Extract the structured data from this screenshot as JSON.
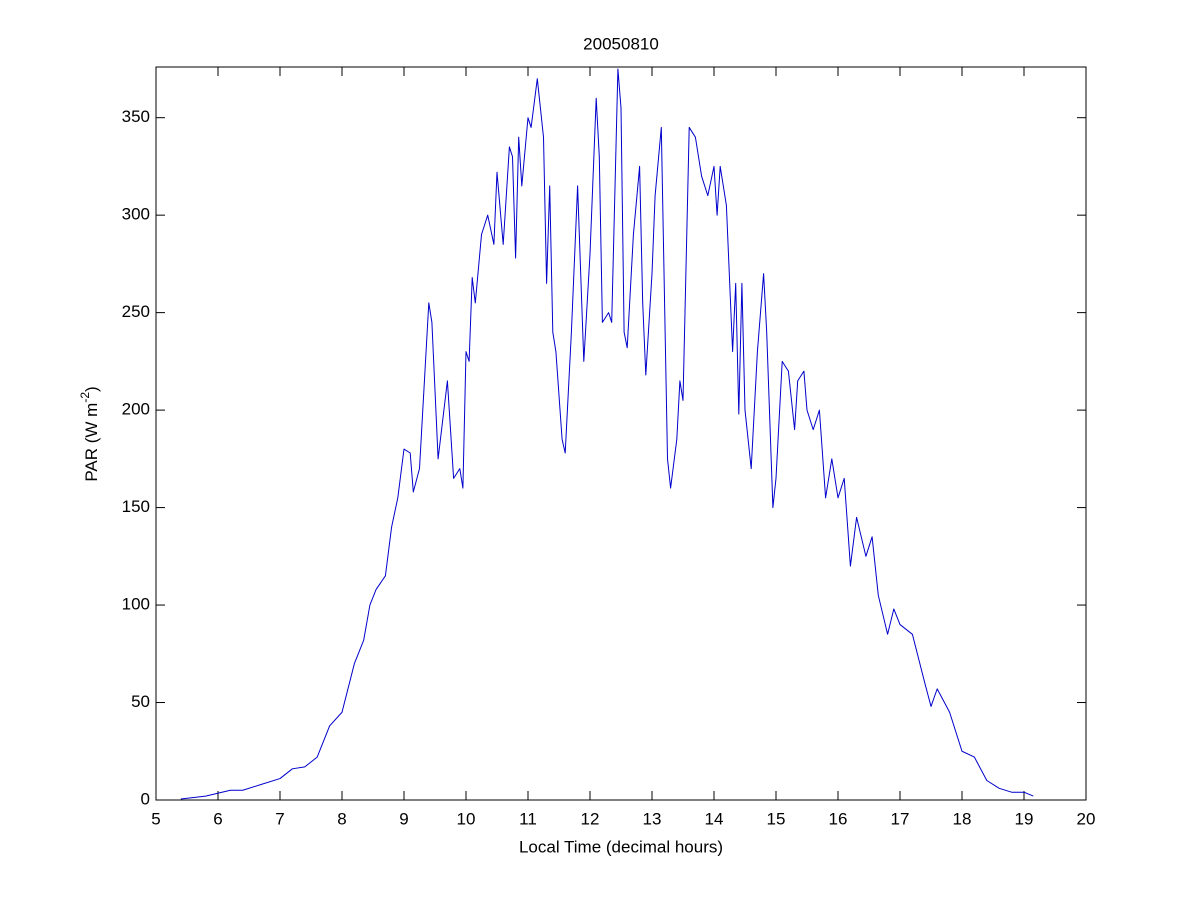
{
  "chart_data": {
    "type": "line",
    "title": "20050810",
    "x_label": "Local Time (decimal hours)",
    "y_label": {
      "text": "PAR (W m",
      "superscript": "-2",
      "suffix": ")"
    },
    "xlim": [
      5,
      20
    ],
    "ylim": [
      0,
      376
    ],
    "xticks": [
      5,
      6,
      7,
      8,
      9,
      10,
      11,
      12,
      13,
      14,
      15,
      16,
      17,
      18,
      19,
      20
    ],
    "yticks": [
      0,
      50,
      100,
      150,
      200,
      250,
      300,
      350
    ],
    "grid": false,
    "series": [
      {
        "color": "#0000cc",
        "x": [
          5.4,
          5.8,
          6.2,
          6.4,
          6.7,
          7.0,
          7.2,
          7.4,
          7.6,
          7.8,
          8.0,
          8.2,
          8.35,
          8.45,
          8.55,
          8.7,
          8.8,
          8.9,
          9.0,
          9.1,
          9.15,
          9.25,
          9.4,
          9.45,
          9.55,
          9.7,
          9.8,
          9.9,
          9.95,
          10.0,
          10.05,
          10.1,
          10.15,
          10.25,
          10.35,
          10.45,
          10.5,
          10.6,
          10.7,
          10.75,
          10.8,
          10.85,
          10.9,
          11.0,
          11.05,
          11.15,
          11.25,
          11.3,
          11.35,
          11.4,
          11.45,
          11.55,
          11.6,
          11.7,
          11.8,
          11.9,
          12.0,
          12.1,
          12.15,
          12.2,
          12.3,
          12.35,
          12.45,
          12.5,
          12.55,
          12.6,
          12.7,
          12.8,
          12.85,
          12.9,
          13.0,
          13.05,
          13.15,
          13.25,
          13.3,
          13.4,
          13.45,
          13.5,
          13.6,
          13.7,
          13.8,
          13.9,
          14.0,
          14.05,
          14.1,
          14.2,
          14.3,
          14.35,
          14.4,
          14.45,
          14.5,
          14.6,
          14.7,
          14.8,
          14.85,
          14.95,
          15.0,
          15.1,
          15.2,
          15.3,
          15.35,
          15.45,
          15.5,
          15.6,
          15.7,
          15.8,
          15.9,
          16.0,
          16.1,
          16.2,
          16.3,
          16.45,
          16.55,
          16.65,
          16.8,
          16.9,
          17.0,
          17.2,
          17.4,
          17.5,
          17.6,
          17.8,
          18.0,
          18.2,
          18.4,
          18.6,
          18.8,
          19.0,
          19.15
        ],
        "values": [
          0.5,
          2,
          5,
          5,
          8,
          11,
          16,
          17,
          22,
          38,
          45,
          70,
          82,
          100,
          108,
          115,
          140,
          155,
          180,
          178,
          158,
          170,
          255,
          245,
          175,
          215,
          165,
          170,
          160,
          230,
          225,
          268,
          255,
          290,
          300,
          285,
          322,
          285,
          335,
          330,
          278,
          340,
          315,
          350,
          345,
          370,
          340,
          265,
          315,
          240,
          230,
          185,
          178,
          240,
          315,
          225,
          280,
          360,
          330,
          245,
          250,
          245,
          375,
          355,
          240,
          232,
          290,
          325,
          255,
          218,
          270,
          310,
          345,
          175,
          160,
          185,
          215,
          205,
          345,
          340,
          320,
          310,
          325,
          300,
          325,
          305,
          230,
          265,
          198,
          265,
          200,
          170,
          230,
          270,
          240,
          150,
          165,
          225,
          220,
          190,
          215,
          220,
          200,
          190,
          200,
          155,
          175,
          155,
          165,
          120,
          145,
          125,
          135,
          105,
          85,
          98,
          90,
          85,
          60,
          48,
          57,
          45,
          25,
          22,
          10,
          6,
          4,
          4,
          2
        ]
      }
    ]
  }
}
